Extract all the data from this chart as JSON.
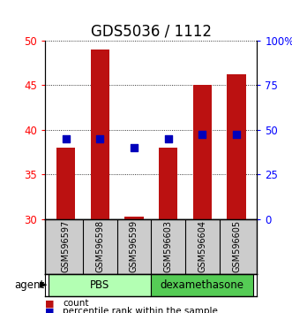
{
  "title": "GDS5036 / 1112",
  "samples": [
    "GSM596597",
    "GSM596598",
    "GSM596599",
    "GSM596603",
    "GSM596604",
    "GSM596605"
  ],
  "count_values": [
    38.0,
    49.0,
    30.3,
    38.0,
    45.0,
    46.2
  ],
  "count_base": 30,
  "percentile_values_left": [
    39.0,
    39.0,
    38.0,
    39.0,
    39.5,
    39.5
  ],
  "ylim_left": [
    30,
    50
  ],
  "ylim_right": [
    0,
    100
  ],
  "yticks_left": [
    30,
    35,
    40,
    45,
    50
  ],
  "yticks_right": [
    0,
    25,
    50,
    75,
    100
  ],
  "ytick_right_labels": [
    "0",
    "25",
    "50",
    "75",
    "100%"
  ],
  "groups": [
    {
      "label": "PBS",
      "indices": [
        0,
        1,
        2
      ],
      "color": "#b3ffb3"
    },
    {
      "label": "dexamethasone",
      "indices": [
        3,
        4,
        5
      ],
      "color": "#55cc55"
    }
  ],
  "bar_color": "#bb1111",
  "dot_color": "#0000bb",
  "bar_width": 0.55,
  "dot_size": 35,
  "background_label": "#cccccc",
  "agent_label": "agent",
  "legend_count_label": "count",
  "legend_percentile_label": "percentile rank within the sample",
  "title_fontsize": 12,
  "tick_fontsize": 8.5,
  "sample_fontsize": 7
}
